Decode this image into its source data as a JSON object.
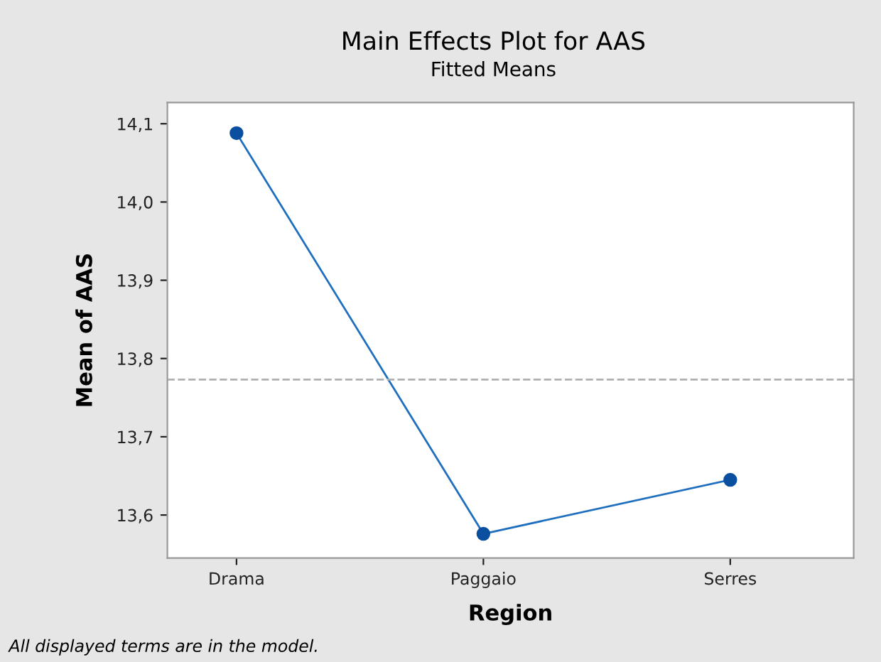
{
  "chart_data": {
    "type": "line",
    "title": "Main Effects Plot for AAS",
    "subtitle": "Fitted Means",
    "xlabel": "Region",
    "ylabel": "Mean of AAS",
    "categories": [
      "Drama",
      "Paggaio",
      "Serres"
    ],
    "series": [
      {
        "color": "#1f6fbf",
        "values": [
          14.088,
          13.576,
          13.645
        ]
      }
    ],
    "marker": "circle",
    "line_style": "solid",
    "ylim": [
      13.545,
      14.127
    ],
    "yticks": [
      {
        "value": 13.6,
        "label": "13,6"
      },
      {
        "value": 13.7,
        "label": "13,7"
      },
      {
        "value": 13.8,
        "label": "13,8"
      },
      {
        "value": 13.9,
        "label": "13,9"
      },
      {
        "value": 14.0,
        "label": "14,0"
      },
      {
        "value": 14.1,
        "label": "14,1"
      }
    ],
    "ref_lines": [
      {
        "axis": "y",
        "value": 13.773,
        "color": "#b0b0b0",
        "line_style": "dashed"
      }
    ],
    "grid": false,
    "legend": false,
    "annotations": [
      "All displayed terms are in the model."
    ]
  }
}
